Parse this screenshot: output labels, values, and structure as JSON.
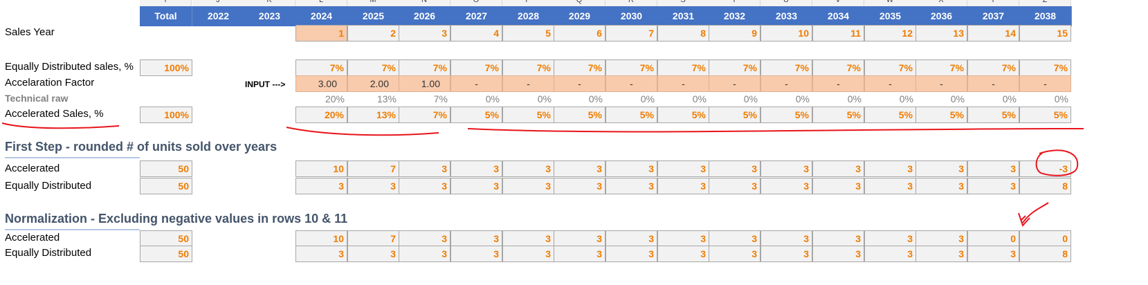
{
  "columns": {
    "letters": [
      "I",
      "J",
      "K",
      "L",
      "M",
      "N",
      "O",
      "P",
      "Q",
      "R",
      "S",
      "T",
      "U",
      "V",
      "W",
      "X",
      "Y",
      "Z"
    ],
    "headers": [
      "Total",
      "2022",
      "2023",
      "2024",
      "2025",
      "2026",
      "2027",
      "2028",
      "2029",
      "2030",
      "2031",
      "2032",
      "2033",
      "2034",
      "2035",
      "2036",
      "2037",
      "2038"
    ]
  },
  "rows": {
    "sales_year": {
      "label": "Sales Year",
      "values": [
        "1",
        "2",
        "3",
        "4",
        "5",
        "6",
        "7",
        "8",
        "9",
        "10",
        "11",
        "12",
        "13",
        "14",
        "15"
      ]
    },
    "equal_pct": {
      "label": "Equally Distributed sales, %",
      "total": "100%",
      "values": [
        "7%",
        "7%",
        "7%",
        "7%",
        "7%",
        "7%",
        "7%",
        "7%",
        "7%",
        "7%",
        "7%",
        "7%",
        "7%",
        "7%",
        "7%"
      ]
    },
    "accel_factor": {
      "label": "Accelaration Factor",
      "input_tag": "INPUT --->",
      "values": [
        "3.00",
        "2.00",
        "1.00",
        "-",
        "-",
        "-",
        "-",
        "-",
        "-",
        "-",
        "-",
        "-",
        "-",
        "-",
        "-"
      ]
    },
    "technical_raw": {
      "label": "Technical raw",
      "values": [
        "20%",
        "13%",
        "7%",
        "0%",
        "0%",
        "0%",
        "0%",
        "0%",
        "0%",
        "0%",
        "0%",
        "0%",
        "0%",
        "0%",
        "0%"
      ]
    },
    "accel_pct": {
      "label": "Accelerated Sales, %",
      "total": "100%",
      "values": [
        "20%",
        "13%",
        "7%",
        "5%",
        "5%",
        "5%",
        "5%",
        "5%",
        "5%",
        "5%",
        "5%",
        "5%",
        "5%",
        "5%",
        "5%"
      ]
    }
  },
  "first_step": {
    "title": "First Step - rounded # of units sold over years",
    "accelerated": {
      "label": "Accelerated",
      "total": "50",
      "values": [
        "10",
        "7",
        "3",
        "3",
        "3",
        "3",
        "3",
        "3",
        "3",
        "3",
        "3",
        "3",
        "3",
        "3",
        "-3"
      ]
    },
    "equally": {
      "label": "Equally Distributed",
      "total": "50",
      "values": [
        "3",
        "3",
        "3",
        "3",
        "3",
        "3",
        "3",
        "3",
        "3",
        "3",
        "3",
        "3",
        "3",
        "3",
        "8"
      ]
    }
  },
  "normalization": {
    "title": "Normalization - Excluding negative values in rows 10 & 11",
    "accelerated": {
      "label": "Accelerated",
      "total": "50",
      "values": [
        "10",
        "7",
        "3",
        "3",
        "3",
        "3",
        "3",
        "3",
        "3",
        "3",
        "3",
        "3",
        "3",
        "0",
        "0"
      ]
    },
    "equally": {
      "label": "Equally Distributed",
      "total": "50",
      "values": [
        "3",
        "3",
        "3",
        "3",
        "3",
        "3",
        "3",
        "3",
        "3",
        "3",
        "3",
        "3",
        "3",
        "3",
        "8"
      ]
    }
  },
  "colors": {
    "header_blue": "#4472c4",
    "value_orange": "#f07c00",
    "input_fill": "#f8cbad",
    "annotation_red": "#e8141b",
    "section_title": "#44546a"
  }
}
